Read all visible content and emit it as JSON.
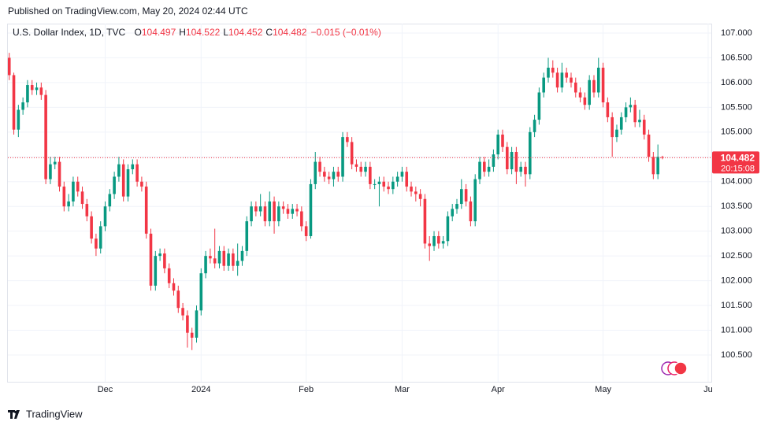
{
  "header": {
    "published": "Published on TradingView.com, May 20, 2024 02:44 UTC"
  },
  "footer": {
    "brand": "TradingView"
  },
  "chart_data": {
    "type": "candlestick",
    "title": "U.S. Dollar Index, 1D, TVC",
    "ohlc_letters": [
      "O",
      "H",
      "L",
      "C"
    ],
    "ohlc_values": [
      "104.497",
      "104.522",
      "104.452",
      "104.482"
    ],
    "change": "−0.015 (−0.01%)",
    "up_color": "#089981",
    "down_color": "#f23645",
    "last_price": 104.482,
    "countdown": "20:15:08",
    "xlim": [
      -0.3,
      153.7
    ],
    "xticks": [
      {
        "value": 21,
        "label": "Dec"
      },
      {
        "value": 42,
        "label": "2024"
      },
      {
        "value": 65,
        "label": "Feb"
      },
      {
        "value": 86,
        "label": "Mar"
      },
      {
        "value": 107,
        "label": "Apr"
      },
      {
        "value": 130,
        "label": "May"
      },
      {
        "value": 153,
        "label": "Ju"
      }
    ],
    "ylim": [
      99.96,
      107.19
    ],
    "yticks": [
      {
        "value": 100.5,
        "label": "100.500"
      },
      {
        "value": 101,
        "label": "101.000"
      },
      {
        "value": 101.5,
        "label": "101.500"
      },
      {
        "value": 102,
        "label": "102.000"
      },
      {
        "value": 102.5,
        "label": "102.500"
      },
      {
        "value": 103,
        "label": "103.000"
      },
      {
        "value": 103.5,
        "label": "103.500"
      },
      {
        "value": 104,
        "label": "104.000"
      },
      {
        "value": 104.5,
        "label": "104.500"
      },
      {
        "value": 105,
        "label": "105.000"
      },
      {
        "value": 105.5,
        "label": "105.500"
      },
      {
        "value": 106,
        "label": "106.000"
      },
      {
        "value": 106.5,
        "label": "106.500"
      },
      {
        "value": 107,
        "label": "107.000"
      }
    ],
    "grid": true,
    "open": [
      106.5,
      106.15,
      105.05,
      105.45,
      105.6,
      105.95,
      105.85,
      105.9,
      105.75,
      104.05,
      104.35,
      104.4,
      103.9,
      103.5,
      103.6,
      104.0,
      103.8,
      103.55,
      103.3,
      102.85,
      102.65,
      103.1,
      103.5,
      103.75,
      104.1,
      104.35,
      103.7,
      104.25,
      104.35,
      104.0,
      103.9,
      102.95,
      101.9,
      102.5,
      102.55,
      102.25,
      101.95,
      101.8,
      101.45,
      101.3,
      100.95,
      100.85,
      101.4,
      102.15,
      102.5,
      102.45,
      102.35,
      102.6,
      102.3,
      102.55,
      102.3,
      102.4,
      102.6,
      103.2,
      103.5,
      103.4,
      103.5,
      103.2,
      103.6,
      103.2,
      103.5,
      103.45,
      103.35,
      103.45,
      103.4,
      103.1,
      102.9,
      103.95,
      104.4,
      104.2,
      104.1,
      104.05,
      104.2,
      104.1,
      104.9,
      104.8,
      104.35,
      104.3,
      104.2,
      104.3,
      103.95,
      103.95,
      104.0,
      103.9,
      103.85,
      104.0,
      104.1,
      104.2,
      103.9,
      103.8,
      103.75,
      103.65,
      102.75,
      102.7,
      102.9,
      102.75,
      102.8,
      103.3,
      103.45,
      103.55,
      103.85,
      103.6,
      103.2,
      104.05,
      104.4,
      104.2,
      104.3,
      104.55,
      104.95,
      104.7,
      104.25,
      104.6,
      104.2,
      104.3,
      104.15,
      105.0,
      105.25,
      105.8,
      106.1,
      106.3,
      106.2,
      105.9,
      106.2,
      106.1,
      106.0,
      105.8,
      105.7,
      105.55,
      106.05,
      105.8,
      106.3,
      105.6,
      105.3,
      104.9,
      105.05,
      105.3,
      105.5,
      105.55,
      105.2,
      105.25,
      104.95,
      104.5,
      104.15,
      104.497
    ],
    "high": [
      106.6,
      106.2,
      105.55,
      105.7,
      106.05,
      106.05,
      106.0,
      106.0,
      105.85,
      104.5,
      104.5,
      104.5,
      104.0,
      103.75,
      104.1,
      104.1,
      103.9,
      103.65,
      103.4,
      102.95,
      103.2,
      103.6,
      103.85,
      104.2,
      104.5,
      104.45,
      104.35,
      104.45,
      104.45,
      104.1,
      104.0,
      103.05,
      102.6,
      102.65,
      102.65,
      102.35,
      102.05,
      101.9,
      101.55,
      101.4,
      101.05,
      101.5,
      102.25,
      102.6,
      102.65,
      103.05,
      102.7,
      102.7,
      102.65,
      102.65,
      102.75,
      102.7,
      103.3,
      103.6,
      103.6,
      103.75,
      103.6,
      103.8,
      103.7,
      103.6,
      103.6,
      103.55,
      103.55,
      103.55,
      103.5,
      103.2,
      104.05,
      104.6,
      104.5,
      104.3,
      104.2,
      104.3,
      104.3,
      105.0,
      105.0,
      104.9,
      104.45,
      104.4,
      104.4,
      104.4,
      104.05,
      104.1,
      104.1,
      104.0,
      104.1,
      104.2,
      104.3,
      104.3,
      104.0,
      103.9,
      103.85,
      103.75,
      102.9,
      103.0,
      103.0,
      102.9,
      103.4,
      103.55,
      103.65,
      104.05,
      103.95,
      103.7,
      104.15,
      104.5,
      104.5,
      104.45,
      104.65,
      105.05,
      105.05,
      104.8,
      104.7,
      104.7,
      104.4,
      104.4,
      105.1,
      105.35,
      105.9,
      106.2,
      106.5,
      106.45,
      106.3,
      106.4,
      106.3,
      106.2,
      106.1,
      105.9,
      105.8,
      106.15,
      106.15,
      106.5,
      106.4,
      105.7,
      105.4,
      105.15,
      105.4,
      105.6,
      105.7,
      105.65,
      105.45,
      105.35,
      105.05,
      104.6,
      104.75,
      104.522
    ],
    "low": [
      106.05,
      104.95,
      104.9,
      105.35,
      105.5,
      105.75,
      105.75,
      105.65,
      103.95,
      103.95,
      104.25,
      103.8,
      103.4,
      103.4,
      103.5,
      103.7,
      103.45,
      103.2,
      102.75,
      102.5,
      102.55,
      103.0,
      103.4,
      103.65,
      104.0,
      103.6,
      103.6,
      104.15,
      103.9,
      103.8,
      102.85,
      101.8,
      101.8,
      102.4,
      102.15,
      101.85,
      101.7,
      101.35,
      101.2,
      100.65,
      100.6,
      100.75,
      101.3,
      102.05,
      102.35,
      102.25,
      102.25,
      102.2,
      102.2,
      102.2,
      102.1,
      102.3,
      102.5,
      103.1,
      103.3,
      103.3,
      103.1,
      103.1,
      102.95,
      103.1,
      103.35,
      103.25,
      103.25,
      103.3,
      103.0,
      102.8,
      102.85,
      103.85,
      104.1,
      104.0,
      103.95,
      103.9,
      104.0,
      104.0,
      104.7,
      104.25,
      104.2,
      104.1,
      104.1,
      103.85,
      103.85,
      103.5,
      103.8,
      103.75,
      103.75,
      103.9,
      104.0,
      103.8,
      103.7,
      103.6,
      103.5,
      102.65,
      102.4,
      102.6,
      102.65,
      102.65,
      102.7,
      103.2,
      103.35,
      103.45,
      103.5,
      103.1,
      103.1,
      103.95,
      104.1,
      104.1,
      104.2,
      104.45,
      104.6,
      104.15,
      104.15,
      103.95,
      104.1,
      103.9,
      104.05,
      104.9,
      105.15,
      105.7,
      106.0,
      106.1,
      105.8,
      105.8,
      106.0,
      105.9,
      105.7,
      105.6,
      105.45,
      105.45,
      105.7,
      105.7,
      105.5,
      105.2,
      104.5,
      104.8,
      104.95,
      105.2,
      105.4,
      105.1,
      105.1,
      104.85,
      104.4,
      104.05,
      104.05,
      104.452
    ],
    "close": [
      106.15,
      105.05,
      105.45,
      105.6,
      105.95,
      105.85,
      105.9,
      105.75,
      104.05,
      104.35,
      104.4,
      103.9,
      103.5,
      103.6,
      104.0,
      103.8,
      103.55,
      103.3,
      102.85,
      102.65,
      103.1,
      103.5,
      103.75,
      104.1,
      104.35,
      103.7,
      104.25,
      104.35,
      104.0,
      103.9,
      102.95,
      101.9,
      102.5,
      102.55,
      102.25,
      101.95,
      101.8,
      101.45,
      101.3,
      100.95,
      100.85,
      101.4,
      102.15,
      102.5,
      102.45,
      102.35,
      102.6,
      102.3,
      102.55,
      102.3,
      102.4,
      102.6,
      103.2,
      103.5,
      103.4,
      103.5,
      103.2,
      103.6,
      103.2,
      103.5,
      103.45,
      103.35,
      103.45,
      103.4,
      103.1,
      102.9,
      103.95,
      104.4,
      104.2,
      104.1,
      104.05,
      104.2,
      104.1,
      104.9,
      104.8,
      104.35,
      104.3,
      104.2,
      104.3,
      103.95,
      103.95,
      104.0,
      103.9,
      103.85,
      104.0,
      104.1,
      104.2,
      103.9,
      103.8,
      103.75,
      103.65,
      102.75,
      102.7,
      102.9,
      102.75,
      102.8,
      103.3,
      103.45,
      103.55,
      103.85,
      103.6,
      103.2,
      104.05,
      104.4,
      104.2,
      104.3,
      104.55,
      104.95,
      104.7,
      104.25,
      104.6,
      104.2,
      104.3,
      104.15,
      105.0,
      105.25,
      105.8,
      106.1,
      106.3,
      106.2,
      105.9,
      106.2,
      106.1,
      106.0,
      105.8,
      105.7,
      105.55,
      106.05,
      105.8,
      106.3,
      105.6,
      105.3,
      104.9,
      105.05,
      105.3,
      105.5,
      105.55,
      105.2,
      105.25,
      104.95,
      104.5,
      104.15,
      104.5,
      104.482
    ]
  }
}
